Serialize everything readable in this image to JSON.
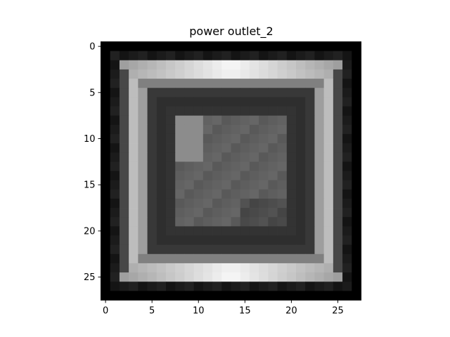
{
  "chart_data": {
    "type": "heatmap",
    "title": "power outlet_2",
    "xlabel": "",
    "ylabel": "",
    "colormap": "gray",
    "value_range": [
      0,
      1
    ],
    "rows": 28,
    "cols": 28,
    "x_ticks": [
      0,
      5,
      10,
      15,
      20,
      25
    ],
    "y_ticks": [
      0,
      5,
      10,
      15,
      20,
      25
    ],
    "x_tick_labels": [
      "0",
      "5",
      "10",
      "15",
      "20",
      "25"
    ],
    "y_tick_labels": [
      "0",
      "5",
      "10",
      "15",
      "20",
      "25"
    ],
    "xlim": [
      -0.5,
      27.5
    ],
    "ylim": [
      27.5,
      -0.5
    ],
    "grid": false,
    "description_values": {
      "background": 0.0,
      "outer_band": 0.15,
      "frame_top_bottom_peak": 0.92,
      "frame_sides": 0.62,
      "inner_dark_ring": 0.18,
      "center_patch": 0.4,
      "center_highlight": 0.55
    }
  }
}
